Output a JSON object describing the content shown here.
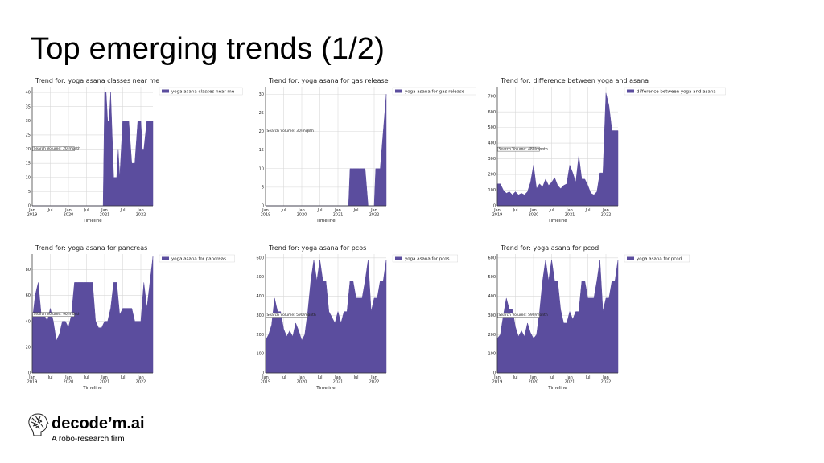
{
  "slide": {
    "title": "Top emerging trends (1/2)"
  },
  "logo": {
    "name": "decode’m.ai",
    "tagline": "A robo-research firm",
    "icon": "sketched-head-icon"
  },
  "colors": {
    "series": "#5b4d9e"
  },
  "chart_data": [
    {
      "type": "area",
      "title": "Trend for: yoga asana classes near me",
      "xlabel": "Timeline",
      "legend": "yoga asana classes near me",
      "legend_position": "top-right",
      "annotation": "Search Volume: 20/month",
      "annotation_y": 20,
      "grid": true,
      "x_ticks": [
        {
          "t": 0,
          "label": "Jan\n2019"
        },
        {
          "t": 6,
          "label": "Jul"
        },
        {
          "t": 12,
          "label": "Jan\n2020"
        },
        {
          "t": 18,
          "label": "Jul"
        },
        {
          "t": 24,
          "label": "Jan\n2021"
        },
        {
          "t": 30,
          "label": "Jul"
        },
        {
          "t": 36,
          "label": "Jan\n2022"
        }
      ],
      "xlim": [
        0,
        40
      ],
      "ylim": [
        0,
        42
      ],
      "y_ticks": [
        0,
        5,
        10,
        15,
        20,
        25,
        30,
        35,
        40
      ],
      "x": [
        0,
        23,
        23.5,
        24,
        24.5,
        25,
        25.5,
        26,
        27,
        28,
        28.5,
        29,
        30,
        31,
        32,
        33,
        34,
        35,
        36,
        36.5,
        37,
        38,
        39,
        40
      ],
      "values": [
        0,
        0,
        0,
        40,
        40,
        30,
        30,
        40,
        10,
        10,
        20,
        10,
        30,
        30,
        30,
        15,
        15,
        30,
        30,
        20,
        20,
        30,
        30,
        30
      ]
    },
    {
      "type": "area",
      "title": "Trend for: yoga asana for gas release",
      "xlabel": "Timeline",
      "legend": "yoga asana for gas release",
      "legend_position": "top-right",
      "annotation": "Search Volume: 30/month",
      "annotation_y": 20,
      "grid": true,
      "x_ticks": [
        {
          "t": 0,
          "label": "Jan\n2019"
        },
        {
          "t": 6,
          "label": "Jul"
        },
        {
          "t": 12,
          "label": "Jan\n2020"
        },
        {
          "t": 18,
          "label": "Jul"
        },
        {
          "t": 24,
          "label": "Jan\n2021"
        },
        {
          "t": 30,
          "label": "Jul"
        },
        {
          "t": 36,
          "label": "Jan\n2022"
        }
      ],
      "xlim": [
        0,
        40
      ],
      "ylim": [
        0,
        32
      ],
      "y_ticks": [
        0,
        5,
        10,
        15,
        20,
        25,
        30
      ],
      "x": [
        0,
        27,
        27.5,
        28,
        29,
        30,
        31,
        32,
        33,
        34,
        35,
        36,
        36.5,
        37,
        38,
        39,
        40
      ],
      "values": [
        0,
        0,
        0,
        10,
        10,
        10,
        10,
        10,
        10,
        0,
        0,
        0,
        10,
        10,
        10,
        20,
        30
      ]
    },
    {
      "type": "area",
      "title": "Trend for: difference between yoga and asana",
      "xlabel": "Timeline",
      "legend": "difference between yoga and asana",
      "legend_position": "top-right",
      "annotation": "Search Volume: 480/month",
      "annotation_y": 360,
      "grid": true,
      "x_ticks": [
        {
          "t": 0,
          "label": "Jan\n2019"
        },
        {
          "t": 6,
          "label": "Jul"
        },
        {
          "t": 12,
          "label": "Jan\n2020"
        },
        {
          "t": 18,
          "label": "Jul"
        },
        {
          "t": 24,
          "label": "Jan\n2021"
        },
        {
          "t": 30,
          "label": "Jul"
        },
        {
          "t": 36,
          "label": "Jan\n2022"
        }
      ],
      "xlim": [
        0,
        40
      ],
      "ylim": [
        0,
        760
      ],
      "y_ticks": [
        0,
        100,
        200,
        300,
        400,
        500,
        600,
        700
      ],
      "x": [
        0,
        1,
        2,
        3,
        4,
        5,
        6,
        7,
        8,
        9,
        10,
        11,
        12,
        13,
        14,
        15,
        16,
        17,
        18,
        19,
        20,
        21,
        22,
        23,
        24,
        25,
        26,
        27,
        28,
        29,
        30,
        31,
        32,
        33,
        34,
        35,
        36,
        37,
        38,
        39,
        40
      ],
      "values": [
        140,
        140,
        100,
        80,
        90,
        70,
        90,
        70,
        80,
        70,
        90,
        150,
        260,
        110,
        140,
        120,
        170,
        130,
        150,
        180,
        130,
        110,
        130,
        140,
        260,
        210,
        150,
        320,
        170,
        170,
        130,
        80,
        70,
        90,
        210,
        210,
        720,
        640,
        480,
        480,
        480
      ]
    },
    {
      "type": "area",
      "title": "Trend for: yoga asana for pancreas",
      "xlabel": "Timeline",
      "legend": "yoga asana for pancreas",
      "legend_position": "top-right",
      "annotation": "Search Volume: 90/month",
      "annotation_y": 45,
      "grid": true,
      "x_ticks": [
        {
          "t": 0,
          "label": "Jan\n2019"
        },
        {
          "t": 6,
          "label": "Jul"
        },
        {
          "t": 12,
          "label": "Jan\n2020"
        },
        {
          "t": 18,
          "label": "Jul"
        },
        {
          "t": 24,
          "label": "Jan\n2021"
        },
        {
          "t": 30,
          "label": "Jul"
        },
        {
          "t": 36,
          "label": "Jan\n2022"
        }
      ],
      "xlim": [
        0,
        40
      ],
      "ylim": [
        0,
        92
      ],
      "y_ticks": [
        0,
        20,
        40,
        60,
        80
      ],
      "x": [
        0,
        1,
        2,
        3,
        4,
        5,
        6,
        7,
        8,
        9,
        10,
        11,
        12,
        13,
        14,
        15,
        16,
        17,
        18,
        19,
        20,
        21,
        22,
        23,
        24,
        25,
        26,
        27,
        28,
        29,
        30,
        31,
        32,
        33,
        34,
        35,
        36,
        37,
        38,
        39,
        40
      ],
      "values": [
        40,
        60,
        70,
        45,
        45,
        40,
        50,
        40,
        25,
        30,
        40,
        40,
        35,
        45,
        70,
        70,
        70,
        70,
        70,
        70,
        70,
        40,
        35,
        35,
        40,
        40,
        50,
        70,
        70,
        45,
        50,
        50,
        50,
        50,
        40,
        40,
        40,
        70,
        50,
        70,
        90
      ]
    },
    {
      "type": "area",
      "title": "Trend for: yoga asana for pcos",
      "xlabel": "Timeline",
      "legend": "yoga asana for pcos",
      "legend_position": "top-right",
      "annotation": "Search Volume: 590/month",
      "annotation_y": 300,
      "grid": true,
      "x_ticks": [
        {
          "t": 0,
          "label": "Jan\n2019"
        },
        {
          "t": 6,
          "label": "Jul"
        },
        {
          "t": 12,
          "label": "Jan\n2020"
        },
        {
          "t": 18,
          "label": "Jul"
        },
        {
          "t": 24,
          "label": "Jan\n2021"
        },
        {
          "t": 30,
          "label": "Jul"
        },
        {
          "t": 36,
          "label": "Jan\n2022"
        }
      ],
      "xlim": [
        0,
        40
      ],
      "ylim": [
        0,
        620
      ],
      "y_ticks": [
        0,
        100,
        200,
        300,
        400,
        500,
        600
      ],
      "x": [
        0,
        1,
        2,
        3,
        4,
        5,
        6,
        7,
        8,
        9,
        10,
        11,
        12,
        13,
        14,
        15,
        16,
        17,
        18,
        19,
        20,
        21,
        22,
        23,
        24,
        25,
        26,
        27,
        28,
        29,
        30,
        31,
        32,
        33,
        34,
        35,
        36,
        37,
        38,
        39,
        40
      ],
      "values": [
        170,
        200,
        250,
        390,
        320,
        320,
        230,
        190,
        220,
        190,
        260,
        220,
        170,
        200,
        320,
        480,
        590,
        480,
        590,
        480,
        480,
        320,
        290,
        260,
        320,
        260,
        320,
        320,
        480,
        480,
        390,
        390,
        390,
        480,
        590,
        320,
        390,
        390,
        480,
        480,
        590
      ]
    },
    {
      "type": "area",
      "title": "Trend for: yoga asana for pcod",
      "xlabel": "Timeline",
      "legend": "yoga asana for pcod",
      "legend_position": "top-right",
      "annotation": "Search Volume: 590/month",
      "annotation_y": 300,
      "grid": true,
      "x_ticks": [
        {
          "t": 0,
          "label": "Jan\n2019"
        },
        {
          "t": 6,
          "label": "Jul"
        },
        {
          "t": 12,
          "label": "Jan\n2020"
        },
        {
          "t": 18,
          "label": "Jul"
        },
        {
          "t": 24,
          "label": "Jan\n2021"
        },
        {
          "t": 30,
          "label": "Jul"
        },
        {
          "t": 36,
          "label": "Jan\n2022"
        }
      ],
      "xlim": [
        0,
        40
      ],
      "ylim": [
        0,
        620
      ],
      "y_ticks": [
        0,
        100,
        200,
        300,
        400,
        500,
        600
      ],
      "x": [
        0,
        1,
        2,
        3,
        4,
        5,
        6,
        7,
        8,
        9,
        10,
        11,
        12,
        13,
        14,
        15,
        16,
        17,
        18,
        19,
        20,
        21,
        22,
        23,
        24,
        25,
        26,
        27,
        28,
        29,
        30,
        31,
        32,
        33,
        34,
        35,
        36,
        37,
        38,
        39,
        40
      ],
      "values": [
        180,
        200,
        300,
        390,
        330,
        330,
        240,
        190,
        220,
        190,
        260,
        210,
        180,
        200,
        320,
        480,
        590,
        480,
        590,
        480,
        480,
        330,
        260,
        260,
        320,
        280,
        320,
        320,
        480,
        480,
        390,
        390,
        390,
        480,
        590,
        320,
        390,
        390,
        480,
        480,
        590
      ]
    }
  ]
}
